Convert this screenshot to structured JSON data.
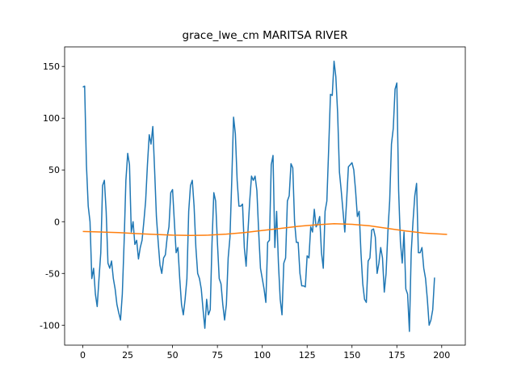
{
  "chart_data": {
    "type": "line",
    "title": "grace_lwe_cm MARITSA RIVER",
    "xlim": [
      -10.15,
      213.15
    ],
    "xticks": [
      0,
      25,
      50,
      75,
      100,
      125,
      150,
      175,
      200
    ],
    "ylim": [
      -119.3,
      168.9
    ],
    "yticks": [
      -100,
      -50,
      0,
      50,
      100,
      150
    ],
    "grid": false,
    "series": [
      {
        "color": "#1f77b4",
        "values": [
          130,
          131,
          55,
          15,
          0,
          -55,
          -45,
          -70,
          -82,
          -55,
          -30,
          35,
          40,
          10,
          -40,
          -45,
          -38,
          -55,
          -65,
          -80,
          -88,
          -95,
          -70,
          -20,
          40,
          66,
          55,
          -10,
          0,
          -22,
          -18,
          -36,
          -25,
          -18,
          0,
          20,
          55,
          84,
          75,
          92,
          50,
          5,
          -20,
          -42,
          -50,
          -35,
          -32,
          -15,
          -5,
          28,
          31,
          0,
          -30,
          -25,
          -55,
          -80,
          -90,
          -75,
          -55,
          10,
          35,
          40,
          15,
          -25,
          -50,
          -55,
          -65,
          -85,
          -103,
          -75,
          -90,
          -85,
          -20,
          28,
          20,
          -20,
          -55,
          -60,
          -80,
          -95,
          -80,
          -35,
          -15,
          40,
          101,
          85,
          40,
          15,
          15,
          17,
          -25,
          -43,
          -10,
          20,
          44,
          40,
          44,
          30,
          -10,
          -45,
          -55,
          -65,
          -78,
          -20,
          -18,
          55,
          64,
          -25,
          10,
          -40,
          -75,
          -90,
          -40,
          -35,
          20,
          25,
          56,
          52,
          0,
          -20,
          -20,
          -50,
          -62,
          -62,
          -63,
          -33,
          -35,
          -5,
          -10,
          12,
          -5,
          -2,
          5,
          -30,
          -45,
          10,
          20,
          70,
          123,
          122,
          155,
          140,
          105,
          48,
          30,
          10,
          -10,
          20,
          53,
          55,
          57,
          50,
          30,
          5,
          10,
          -30,
          -60,
          -75,
          -78,
          -38,
          -35,
          -8,
          -7,
          -15,
          -50,
          -40,
          -25,
          -35,
          -68,
          -50,
          -10,
          20,
          75,
          90,
          128,
          134,
          30,
          -20,
          -40,
          -10,
          -65,
          -70,
          -106,
          -30,
          0,
          25,
          37,
          -30,
          -30,
          -25,
          -45,
          -55,
          -75,
          -100,
          -95,
          -85,
          -54
        ]
      },
      {
        "color": "#ff7f0e",
        "x": [
          0,
          10,
          20,
          30,
          40,
          50,
          60,
          70,
          80,
          90,
          100,
          110,
          120,
          130,
          140,
          150,
          160,
          170,
          180,
          190,
          200,
          203
        ],
        "values": [
          -9.5,
          -10,
          -10.5,
          -11.5,
          -12.3,
          -13,
          -13.3,
          -13,
          -12,
          -10.5,
          -8.5,
          -6.5,
          -4.5,
          -3,
          -2,
          -2.5,
          -4,
          -6.5,
          -9,
          -11,
          -12,
          -12.3
        ]
      }
    ]
  }
}
